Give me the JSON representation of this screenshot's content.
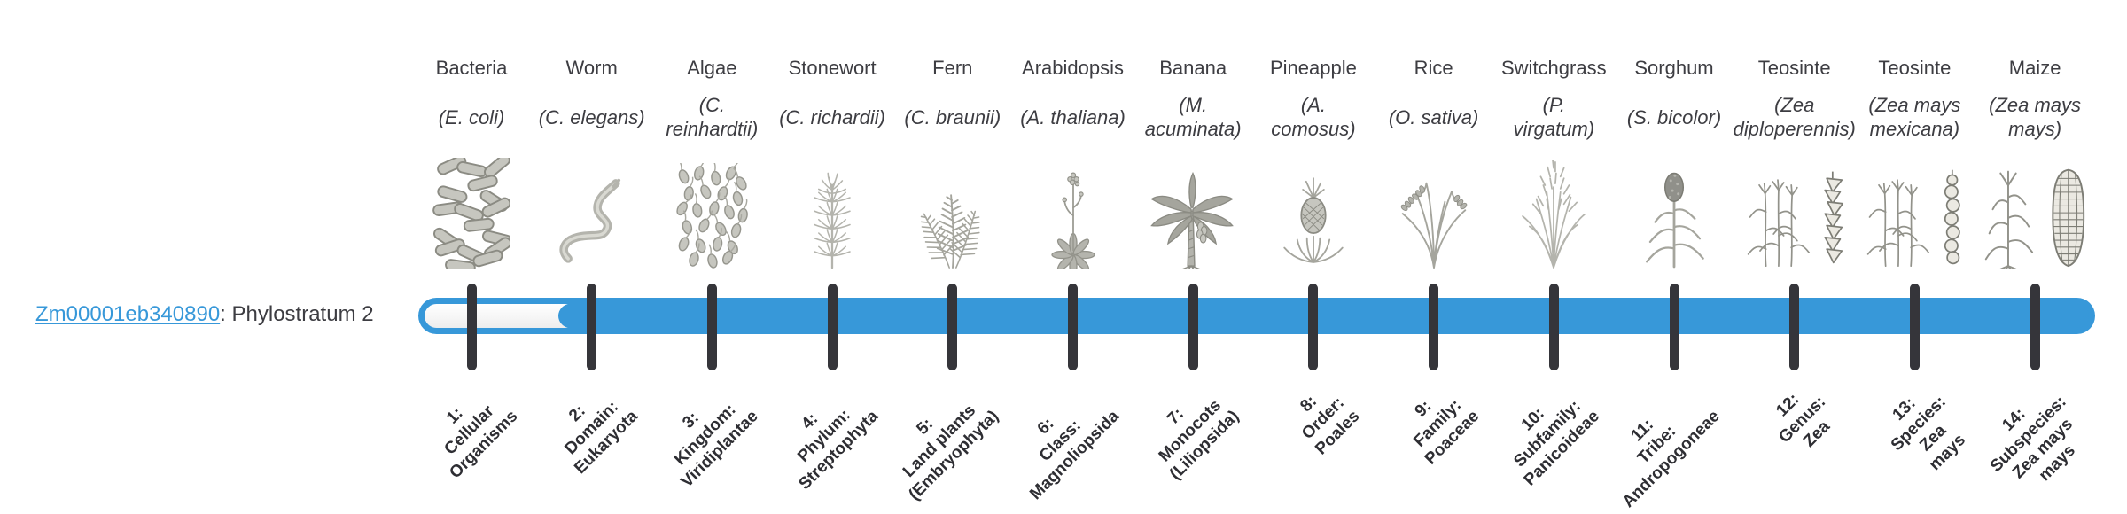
{
  "gene": {
    "id": "Zm00001eb340890",
    "label_suffix": ": Phylostratum 2",
    "phylostratum": 2
  },
  "bar": {
    "total_strata": 14,
    "filled_from_stratum": 2
  },
  "colors": {
    "accent": "#3798d9",
    "tick": "#35353a",
    "text": "#3d3d42",
    "label_dark": "#2e2e33"
  },
  "organisms": [
    {
      "name": "Bacteria",
      "sci_lines": [
        "(E. coli)"
      ],
      "icon": "bacteria-icon"
    },
    {
      "name": "Worm",
      "sci_lines": [
        "(C. elegans)"
      ],
      "icon": "worm-icon"
    },
    {
      "name": "Algae",
      "sci_lines": [
        "(C.",
        "reinhardtii)"
      ],
      "icon": "algae-icon"
    },
    {
      "name": "Stonewort",
      "sci_lines": [
        "(C. richardii)"
      ],
      "icon": "stonewort-icon"
    },
    {
      "name": "Fern",
      "sci_lines": [
        "(C. braunii)"
      ],
      "icon": "fern-icon"
    },
    {
      "name": "Arabidopsis",
      "sci_lines": [
        "(A. thaliana)"
      ],
      "icon": "arabidopsis-icon"
    },
    {
      "name": "Banana",
      "sci_lines": [
        "(M.",
        "acuminata)"
      ],
      "icon": "banana-icon"
    },
    {
      "name": "Pineapple",
      "sci_lines": [
        "(A.",
        "comosus)"
      ],
      "icon": "pineapple-icon"
    },
    {
      "name": "Rice",
      "sci_lines": [
        "(O. sativa)"
      ],
      "icon": "rice-icon"
    },
    {
      "name": "Switchgrass",
      "sci_lines": [
        "(P.",
        "virgatum)"
      ],
      "icon": "switchgrass-icon"
    },
    {
      "name": "Sorghum",
      "sci_lines": [
        "(S. bicolor)"
      ],
      "icon": "sorghum-icon"
    },
    {
      "name": "Teosinte",
      "sci_lines": [
        "(Zea",
        "diploperennis)"
      ],
      "icon": "teosinte-diploperennis-icon"
    },
    {
      "name": "Teosinte",
      "sci_lines": [
        "(Zea mays",
        "mexicana)"
      ],
      "icon": "teosinte-mexicana-icon"
    },
    {
      "name": "Maize",
      "sci_lines": [
        "(Zea mays",
        "mays)"
      ],
      "icon": "maize-icon"
    }
  ],
  "strata": [
    {
      "lines": [
        "1:",
        "Cellular",
        "Organisms"
      ]
    },
    {
      "lines": [
        "2:",
        "Domain:",
        "Eukaryota"
      ]
    },
    {
      "lines": [
        "3:",
        "Kingdom:",
        "Viridiplantae"
      ]
    },
    {
      "lines": [
        "4:",
        "Phylum:",
        "Streptophyta"
      ]
    },
    {
      "lines": [
        "5:",
        "Land plants",
        "(Embryophyta)"
      ]
    },
    {
      "lines": [
        "6:",
        "Class:",
        "Magnoliopsida"
      ]
    },
    {
      "lines": [
        "7:",
        "Monocots",
        "(Liliopsida)"
      ]
    },
    {
      "lines": [
        "8:",
        "Order:",
        "Poales"
      ]
    },
    {
      "lines": [
        "9:",
        "Family:",
        "Poaceae"
      ]
    },
    {
      "lines": [
        "10:",
        "Subfamily:",
        "Panicoideae"
      ]
    },
    {
      "lines": [
        "11:",
        "Tribe:",
        "Andropogoneae"
      ]
    },
    {
      "lines": [
        "12:",
        "Genus:",
        "Zea"
      ]
    },
    {
      "lines": [
        "13:",
        "Species:",
        "Zea",
        "mays"
      ]
    },
    {
      "lines": [
        "14:",
        "Subspecies:",
        "Zea mays",
        "mays"
      ]
    }
  ]
}
